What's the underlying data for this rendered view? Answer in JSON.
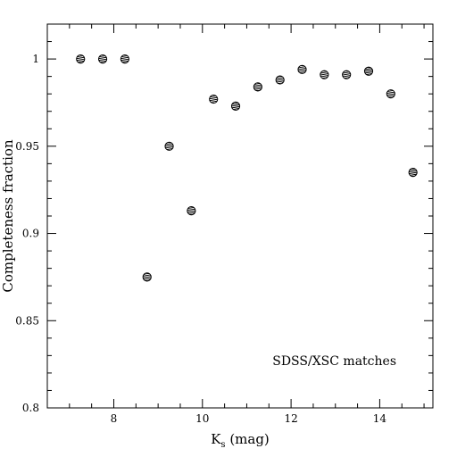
{
  "chart_data": {
    "type": "scatter",
    "title": "",
    "xlabel": "K",
    "xlabel_sub": "s",
    "xlabel_unit": " (mag)",
    "ylabel": "Completeness fraction",
    "xlim": [
      6.5,
      15.2
    ],
    "ylim": [
      0.8,
      1.02
    ],
    "x_major_ticks": [
      8,
      10,
      12,
      14
    ],
    "x_tick_labels": [
      "8",
      "10",
      "12",
      "14"
    ],
    "x_minor_step": 0.5,
    "y_major_ticks": [
      0.8,
      0.85,
      0.9,
      0.95,
      1.0
    ],
    "y_tick_labels": [
      "0.8",
      "0.85",
      "0.9",
      "0.95",
      "1"
    ],
    "y_minor_step": 0.01,
    "grid": false,
    "annotation": "SDSS/XSC matches",
    "x": [
      7.25,
      7.75,
      8.25,
      8.75,
      9.25,
      9.75,
      10.25,
      10.75,
      11.25,
      11.75,
      12.25,
      12.75,
      13.25,
      13.75,
      14.25,
      14.75
    ],
    "y": [
      1.0,
      1.0,
      1.0,
      0.875,
      0.95,
      0.913,
      0.977,
      0.973,
      0.984,
      0.988,
      0.994,
      0.991,
      0.991,
      0.993,
      0.98,
      0.935
    ]
  }
}
